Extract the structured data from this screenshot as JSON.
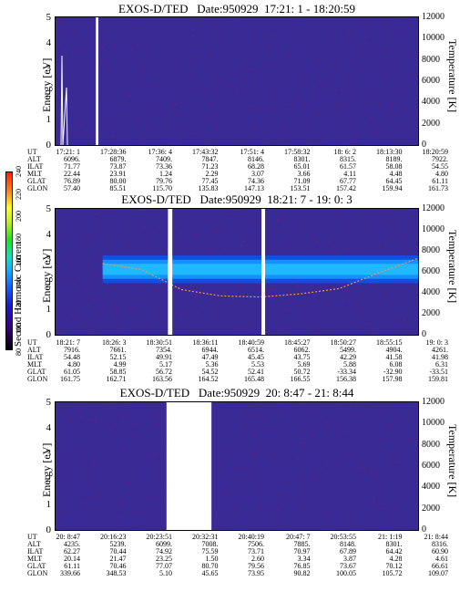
{
  "chart_data": [
    {
      "type": "heatmap",
      "title": "EXOS-D/TED   Date:950929  17:21: 1 - 18:20:59",
      "ylabel": "Energy [eV]",
      "ylabel_right": "Temperature [K]",
      "ylim": [
        0,
        5
      ],
      "ylim_right": [
        0,
        12000
      ],
      "yticks": [
        "0",
        "1",
        "2",
        "3",
        "4",
        "5"
      ],
      "yticks_right": [
        "0",
        "2000",
        "4000",
        "6000",
        "8000",
        "10000",
        "12000"
      ],
      "ephemeris_labels": [
        "UT",
        "ALT",
        "ILAT",
        "MLT",
        "GLAT",
        "GLON"
      ],
      "ephemeris": [
        [
          "17:21: 1",
          "6096.",
          "71.77",
          "22.44",
          "76.89",
          "57.40"
        ],
        [
          "17:28:36",
          "6879.",
          "73.87",
          "23.91",
          "80.00",
          "85.51"
        ],
        [
          "17:36: 4",
          "7409.",
          "73.36",
          "1.24",
          "79.76",
          "115.70"
        ],
        [
          "17:43:32",
          "7847.",
          "71.23",
          "2.29",
          "77.45",
          "135.83"
        ],
        [
          "17:51: 4",
          "8146.",
          "68.28",
          "3.07",
          "74.36",
          "147.13"
        ],
        [
          "17:58:32",
          "8301.",
          "65.01",
          "3.66",
          "71.09",
          "153.51"
        ],
        [
          "18: 6: 2",
          "8315.",
          "61.57",
          "4.11",
          "67.77",
          "157.42"
        ],
        [
          "18:13:30",
          "8189.",
          "58.08",
          "4.48",
          "64.45",
          "159.94"
        ],
        [
          "18:20:59",
          "7922.",
          "54.55",
          "4.80",
          "61.11",
          "161.73"
        ]
      ],
      "data_gaps": [
        [
          0.111,
          0.118
        ]
      ]
    },
    {
      "type": "heatmap",
      "title": "EXOS-D/TED   Date:950929  18:21: 7 - 19: 0: 3",
      "ylabel": "Energy [eV]",
      "ylabel_right": "Temperature [K]",
      "ylim": [
        0,
        5
      ],
      "ylim_right": [
        0,
        12000
      ],
      "yticks": [
        "0",
        "1",
        "2",
        "3",
        "4",
        "5"
      ],
      "yticks_right": [
        "0",
        "2000",
        "4000",
        "6000",
        "8000",
        "10000",
        "12000"
      ],
      "ephemeris_labels": [
        "UT",
        "ALT",
        "ILAT",
        "MLT",
        "GLAT",
        "GLON"
      ],
      "ephemeris": [
        [
          "18:21: 7",
          "7916.",
          "54.48",
          "4.80",
          "61.05",
          "161.75"
        ],
        [
          "18:26: 3",
          "7661.",
          "52.15",
          "4.99",
          "58.85",
          "162.71"
        ],
        [
          "18:30:51",
          "7354.",
          "49.91",
          "5.17",
          "56.72",
          "163.56"
        ],
        [
          "18:36:11",
          "6944.",
          "47.49",
          "5.36",
          "54.52",
          "164.52"
        ],
        [
          "18:40:59",
          "6514.",
          "45.45",
          "5.53",
          "52.41",
          "165.48"
        ],
        [
          "18:45:27",
          "6062.",
          "43.75",
          "5.69",
          "50.72",
          "166.55"
        ],
        [
          "18:50:27",
          "5499.",
          "42.29",
          "5.88",
          "-33.34",
          "156.38"
        ],
        [
          "18:55:15",
          "4904.",
          "41.58",
          "6.08",
          "-32.90",
          "157.98"
        ],
        [
          "19: 0: 3",
          "4261.",
          "41.98",
          "6.31",
          "-33.51",
          "159.81"
        ]
      ],
      "band": {
        "energy_center_ev": 2.6,
        "start_fraction": 0.13,
        "tail_energy_ev": 1.5
      },
      "temperature_trace_k": [
        6800,
        6200,
        4300,
        3700,
        3600,
        3900,
        4400,
        5900,
        7300
      ],
      "data_gaps": [
        [
          0.31,
          0.322
        ],
        [
          0.568,
          0.578
        ]
      ],
      "colorbar": {
        "label": "Second Harmonic Current",
        "ticks": [
          "80",
          "100",
          "120",
          "140",
          "160",
          "180",
          "200",
          "220",
          "240"
        ]
      }
    },
    {
      "type": "heatmap",
      "title": "EXOS-D/TED   Date:950929  20: 8:47 - 21: 8:44",
      "ylabel": "Energy [eV]",
      "ylabel_right": "Temperature [K]",
      "ylim": [
        0,
        5
      ],
      "ylim_right": [
        0,
        12000
      ],
      "yticks": [
        "0",
        "1",
        "2",
        "3",
        "4",
        "5"
      ],
      "yticks_right": [
        "0",
        "2000",
        "4000",
        "6000",
        "8000",
        "10000",
        "12000"
      ],
      "ephemeris_labels": [
        "UT",
        "ALT",
        "ILAT",
        "MLT",
        "GLAT",
        "GLON"
      ],
      "ephemeris": [
        [
          "20: 8:47",
          "4235.",
          "62.27",
          "20.14",
          "61.11",
          "339.66"
        ],
        [
          "20:16:23",
          "5239.",
          "70.44",
          "21.47",
          "70.46",
          "348.53"
        ],
        [
          "20:23:51",
          "6099.",
          "74.92",
          "23.25",
          "77.07",
          "5.10"
        ],
        [
          "20:32:31",
          "7008.",
          "75.59",
          "1.50",
          "80.70",
          "45.65"
        ],
        [
          "20:40:19",
          "7506.",
          "73.71",
          "2.60",
          "79.56",
          "73.95"
        ],
        [
          "20:47: 7",
          "7885.",
          "70.97",
          "3.34",
          "76.85",
          "90.82"
        ],
        [
          "20:53:55",
          "8148.",
          "67.89",
          "3.87",
          "73.67",
          "100.05"
        ],
        [
          "21: 1:19",
          "8301.",
          "64.42",
          "4.28",
          "70.12",
          "105.72"
        ],
        [
          "21: 8:44",
          "8316.",
          "60.90",
          "4.61",
          "66.61",
          "109.07"
        ]
      ],
      "data_gaps": [
        [
          0.306,
          0.43
        ]
      ]
    }
  ]
}
